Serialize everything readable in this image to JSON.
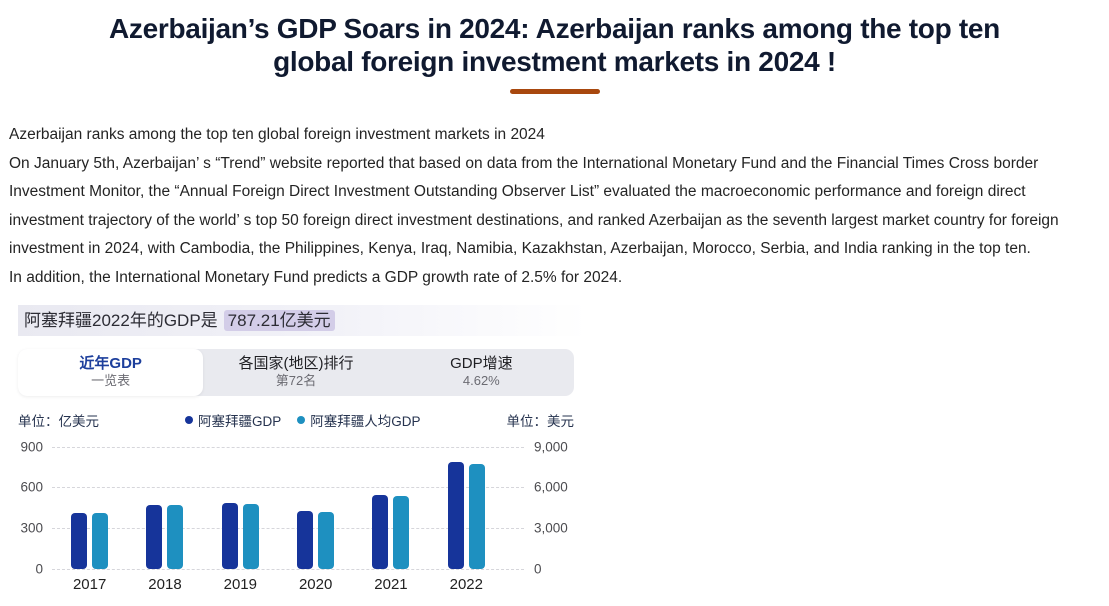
{
  "page": {
    "title_lines": [
      "Azerbaijan’s GDP Soars in 2024: Azerbaijan ranks among the top ten",
      "global foreign investment markets in 2024 !"
    ],
    "accent_color": "#a8480e",
    "body_lines": [
      "Azerbaijan ranks among the top ten global foreign investment markets in 2024",
      "On January 5th, Azerbaijan’ s “Trend” website reported that based on data from the International Monetary Fund and the Financial Times Cross border",
      "Investment Monitor, the “Annual Foreign Direct Investment Outstanding Observer List” evaluated the macroeconomic performance and foreign direct",
      "investment trajectory of the world’ s top 50 foreign direct investment destinations, and ranked Azerbaijan as the seventh largest market country for foreign",
      "investment in 2024, with Cambodia, the Philippines, Kenya, Iraq, Namibia, Kazakhstan, Azerbaijan, Morocco, Serbia, and India ranking in the top ten.",
      "In addition, the International Monetary Fund predicts a GDP growth rate of 2.5% for 2024."
    ]
  },
  "gdp_card": {
    "headline": {
      "prefix": "阿塞拜疆2022年的GDP是",
      "highlight": "787.21亿美元",
      "highlight_color": "#d3cde8"
    },
    "tabs": [
      {
        "label": "近年GDP",
        "sublabel": "一览表",
        "active": true
      },
      {
        "label": "各国家(地区)排行",
        "sublabel": "第72名",
        "active": false
      },
      {
        "label": "GDP增速",
        "sublabel": "4.62%",
        "active": false
      }
    ],
    "left_unit": "单位：亿美元",
    "right_unit": "单位：美元",
    "legend": [
      {
        "label": "阿塞拜疆GDP",
        "color": "#16349a"
      },
      {
        "label": "阿塞拜疆人均GDP",
        "color": "#1e90c0"
      }
    ]
  },
  "chart_data": {
    "type": "bar",
    "title": "阿塞拜疆2022年的GDP是787.21亿美元",
    "categories": [
      "2017",
      "2018",
      "2019",
      "2020",
      "2021",
      "2022"
    ],
    "series": [
      {
        "name": "阿塞拜疆GDP",
        "axis": "left",
        "color": "#16349a",
        "values": [
          408,
          471,
          482,
          428,
          546,
          787.21
        ]
      },
      {
        "name": "阿塞拜疆人均GDP",
        "axis": "right",
        "color": "#1e90c0",
        "values": [
          4100,
          4700,
          4800,
          4200,
          5350,
          7700
        ]
      }
    ],
    "left_axis": {
      "label": "单位：亿美元",
      "max": 900,
      "ticks": [
        "0",
        "300",
        "600",
        "900"
      ]
    },
    "right_axis": {
      "label": "单位：美元",
      "max": 9000,
      "ticks": [
        "0",
        "3,000",
        "6,000",
        "9,000"
      ]
    },
    "grid": "horizontal dashed",
    "legend_position": "top-center"
  }
}
